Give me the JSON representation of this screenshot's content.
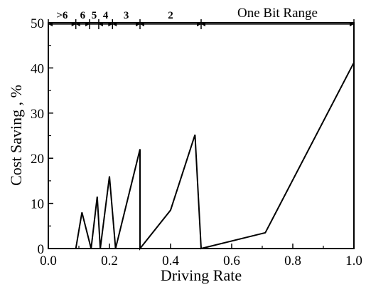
{
  "chart_data": {
    "type": "line",
    "title": "",
    "xlabel": "Driving Rate",
    "ylabel": "Cost Saving , %",
    "xlim": [
      0.0,
      1.0
    ],
    "ylim": [
      0,
      50
    ],
    "x_ticks": [
      "0.0",
      "0.2",
      "0.4",
      "0.6",
      "0.8",
      "1.0"
    ],
    "y_ticks": [
      "0",
      "10",
      "20",
      "30",
      "40",
      "50"
    ],
    "grid": false,
    "series": [
      {
        "x": [
          0.09,
          0.11,
          0.14,
          0.16,
          0.17,
          0.2,
          0.22,
          0.3,
          0.3,
          0.4,
          0.48,
          0.5,
          0.71,
          1.0
        ],
        "y": [
          0,
          8,
          0,
          11.5,
          0,
          16,
          0,
          22,
          0,
          8.5,
          25.2,
          0,
          3.5,
          41.2
        ]
      }
    ],
    "range_annotations": [
      {
        "label": ">6",
        "from": 0.0,
        "to": 0.09
      },
      {
        "label": "6",
        "from": 0.09,
        "to": 0.135
      },
      {
        "label": "5",
        "from": 0.135,
        "to": 0.165
      },
      {
        "label": "4",
        "from": 0.165,
        "to": 0.21
      },
      {
        "label": "3",
        "from": 0.21,
        "to": 0.3
      },
      {
        "label": "2",
        "from": 0.3,
        "to": 0.5
      },
      {
        "label": "One Bit Range",
        "from": 0.5,
        "to": 1.0
      }
    ]
  }
}
